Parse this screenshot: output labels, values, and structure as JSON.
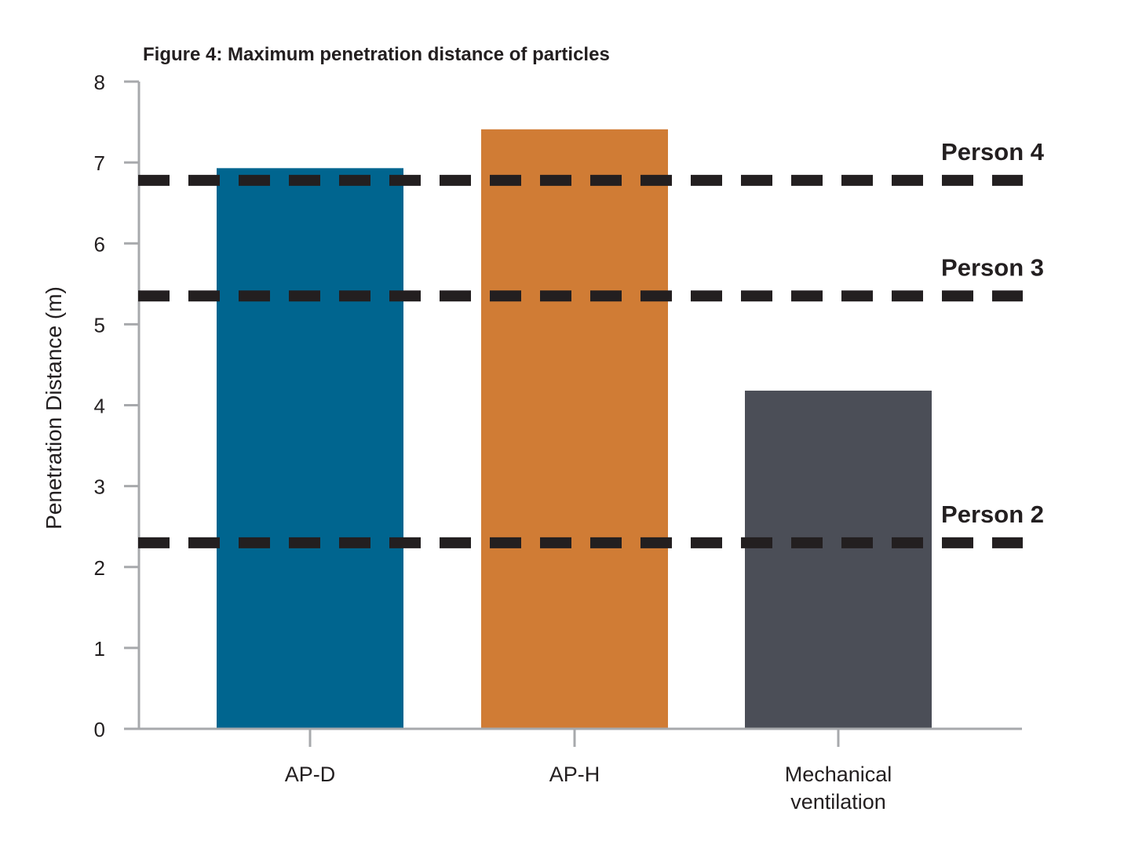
{
  "chart_data": {
    "type": "bar",
    "title": "Figure 4: Maximum penetration distance of particles",
    "ylabel": "Penetration Distance (m)",
    "xlabel": "",
    "ylim": [
      0,
      8
    ],
    "yticks": [
      "0",
      "1",
      "2",
      "3",
      "4",
      "5",
      "6",
      "7",
      "8"
    ],
    "categories": [
      [
        "AP-D"
      ],
      [
        "AP-H"
      ],
      [
        "Mechanical",
        "ventilation"
      ]
    ],
    "values": [
      6.93,
      7.41,
      4.18
    ],
    "bar_colors": [
      "#00658f",
      "#d07c35",
      "#4b4e57"
    ],
    "reference_lines": [
      {
        "label": "Person 4",
        "y": 6.78
      },
      {
        "label": "Person 3",
        "y": 5.35
      },
      {
        "label": "Person 2",
        "y": 2.3
      }
    ],
    "reference_line_color": "#231f20",
    "axis_color": "#a7a9ac",
    "grid": false,
    "legend": "none"
  }
}
